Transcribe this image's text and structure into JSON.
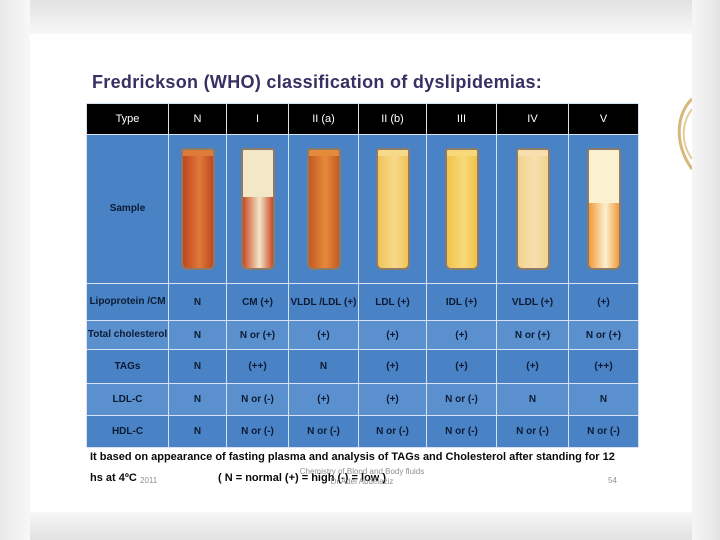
{
  "title": "Fredrickson (WHO) classification of dyslipidemias:",
  "table": {
    "headers": [
      "Type",
      "N",
      "I",
      "II (a)",
      "II (b)",
      "III",
      "IV",
      "V"
    ],
    "sample_label": "Sample",
    "rows": [
      {
        "label": "Lipoprotein /CM",
        "cells": [
          "N",
          "CM (+)",
          "VLDL /LDL (+)",
          "LDL (+)",
          "IDL (+)",
          "VLDL (+)",
          "(+)"
        ]
      },
      {
        "label": "Total cholesterol",
        "cells": [
          "N",
          "N or (+)",
          "(+)",
          "(+)",
          "(+)",
          "N or (+)",
          "N or (+)"
        ]
      },
      {
        "label": "TAGs",
        "cells": [
          "N",
          "(++)",
          "N",
          "(+)",
          "(+)",
          "(+)",
          "(++)"
        ]
      },
      {
        "label": "LDL-C",
        "cells": [
          "N",
          "N or (-)",
          "(+)",
          "(+)",
          "N or (-)",
          "N",
          "N"
        ]
      },
      {
        "label": "HDL-C",
        "cells": [
          "N",
          "N or (-)",
          "N or (-)",
          "N or (-)",
          "N or (-)",
          "N or (-)",
          "N or (-)"
        ]
      }
    ],
    "tubes": [
      {
        "name": "N",
        "cap": "#e07a3a",
        "body": "#c0461f",
        "cap_frac": 0.05
      },
      {
        "name": "I",
        "cap": "#f3e7c8",
        "body": "#c94a24",
        "cap_frac": 0.4
      },
      {
        "name": "II (a)",
        "cap": "#e58a3b",
        "body": "#c65a22",
        "cap_frac": 0.05
      },
      {
        "name": "II (b)",
        "cap": "#f7d98a",
        "body": "#f0c357",
        "cap_frac": 0.05
      },
      {
        "name": "III",
        "cap": "#f8d97a",
        "body": "#f2c24a",
        "cap_frac": 0.05
      },
      {
        "name": "IV",
        "cap": "#f7e0ae",
        "body": "#f1d38e",
        "cap_frac": 0.05
      },
      {
        "name": "V",
        "cap": "#fbf0d0",
        "body": "#f29a3a",
        "cap_frac": 0.45
      }
    ]
  },
  "footer": {
    "line1": "It based on appearance of fasting plasma and analysis of TAGs and Cholesterol after standing for 12",
    "line2_start": "hs at 4ºC",
    "legend": "( N = normal     (+) = high   (-) = low )",
    "date": "2011",
    "center_line1": "Chemistry of Blood and Body fluids",
    "center_line2": "Dr Adel Abdelaziz",
    "page_number": "54"
  }
}
